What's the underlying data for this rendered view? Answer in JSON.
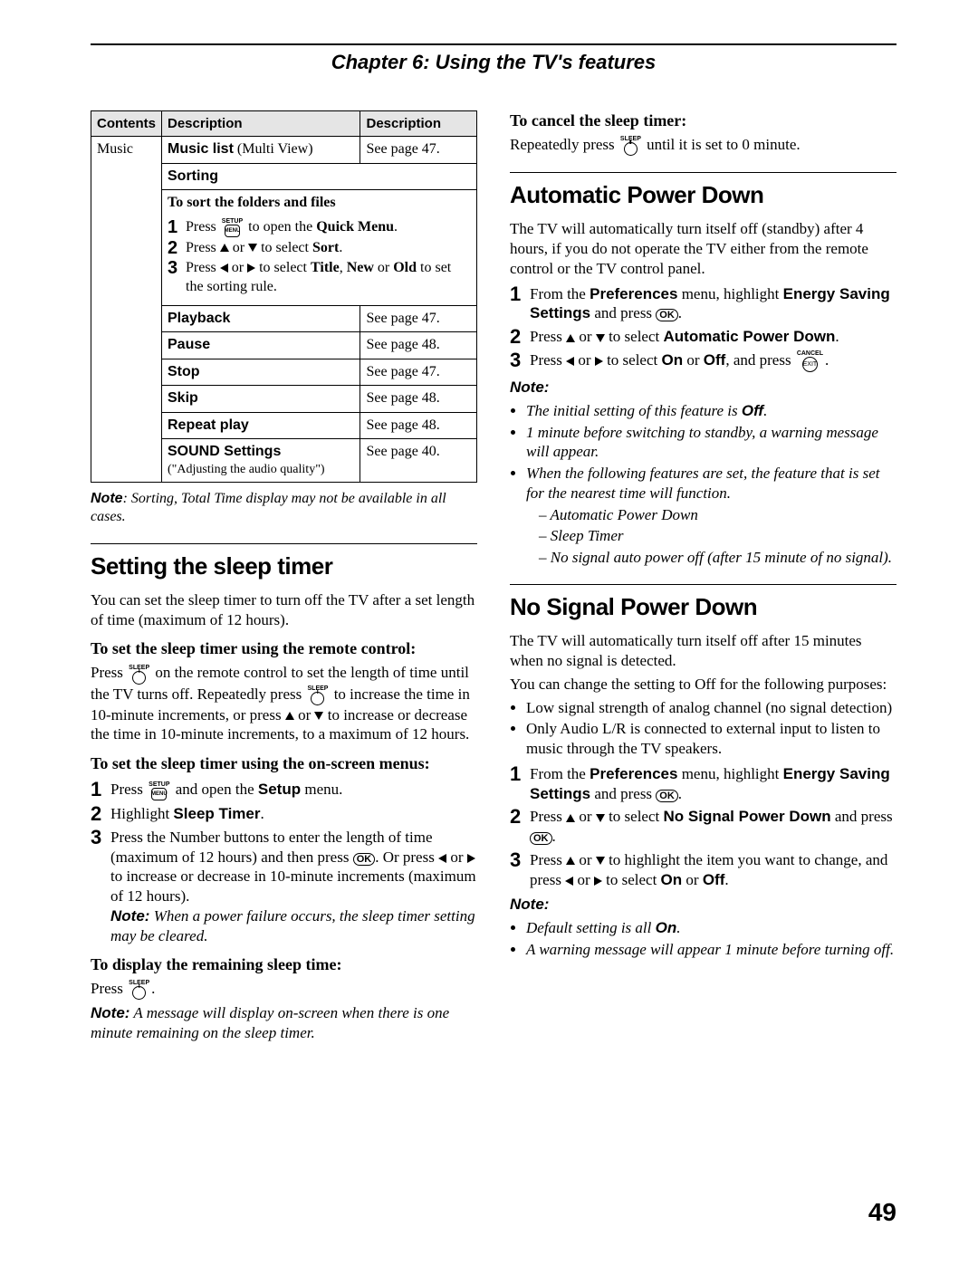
{
  "chapter_title": "Chapter 6: Using the TV's features",
  "page_number": "49",
  "table": {
    "headers": [
      "Contents",
      "Description",
      "Description"
    ],
    "music_label": "Music",
    "row_musiclist": {
      "label": "Music list",
      "paren": " (Multi View)",
      "ref": "See page 47."
    },
    "sorting_label": "Sorting",
    "sort_heading": "To sort the folders and files",
    "sort_steps": {
      "s1_a": "Press ",
      "s1_b": " to open the ",
      "s1_c": "Quick Menu",
      "s1_d": ".",
      "s2_a": "Press ",
      "s2_b": " or ",
      "s2_c": " to select ",
      "s2_d": "Sort",
      "s2_e": ".",
      "s3_a": "Press ",
      "s3_b": " or ",
      "s3_c": " to select ",
      "s3_d": "Title",
      "s3_e": ", ",
      "s3_f": "New",
      "s3_g": " or ",
      "s3_h": "Old",
      "s3_i": " to set the sorting rule."
    },
    "row_playback": {
      "label": "Playback",
      "ref": "See page 47."
    },
    "row_pause": {
      "label": "Pause",
      "ref": "See page 48."
    },
    "row_stop": {
      "label": "Stop",
      "ref": "See page 47."
    },
    "row_skip": {
      "label": "Skip",
      "ref": "See page 48."
    },
    "row_repeat": {
      "label": "Repeat play",
      "ref": "See page 48."
    },
    "row_sound": {
      "label": "SOUND Settings",
      "sub": "(\"Adjusting the audio quality\")",
      "ref": "See page 40."
    }
  },
  "table_note_label": "Note",
  "table_note_text": ": Sorting, Total Time display may not be available in all cases.",
  "sec_sleep": {
    "title": "Setting the sleep timer",
    "intro": "You can set the sleep timer to turn off the TV after a set length of time (maximum of 12 hours).",
    "h_remote": "To set the sleep timer using the remote control:",
    "remote_a": "Press ",
    "remote_b": " on the remote control to set the length of time until the TV turns off. Repeatedly press ",
    "remote_c": " to increase the time in 10-minute increments, or press ",
    "remote_d": " or ",
    "remote_e": " to increase or decrease the time in 10-minute increments, to a maximum of 12 hours.",
    "h_menus": "To set the sleep timer using the on-screen menus:",
    "m1_a": "Press ",
    "m1_b": " and open the ",
    "m1_c": "Setup",
    "m1_d": " menu.",
    "m2_a": "Highlight ",
    "m2_b": "Sleep Timer",
    "m2_c": ".",
    "m3_a": "Press the Number buttons to enter the length of time (maximum of 12 hours) and then press ",
    "m3_b": ". Or press ",
    "m3_c": " or ",
    "m3_d": " to increase or decrease in 10-minute increments (maximum of 12 hours).",
    "m3_note_label": "Note:",
    "m3_note": " When a power failure occurs, the sleep timer setting may be cleared.",
    "h_display": "To display the remaining sleep time:",
    "display_a": "Press ",
    "display_b": ".",
    "display_note_label": "Note:",
    "display_note": " A message will display on-screen when there is one minute remaining on the sleep timer."
  },
  "sec_cancel": {
    "heading": "To cancel the sleep timer:",
    "text_a": "Repeatedly press ",
    "text_b": " until it is set to 0 minute."
  },
  "sec_apd": {
    "title": "Automatic Power Down",
    "intro": "The TV will automatically turn itself off (standby) after 4 hours, if you do not operate the TV either from the remote control or the TV control panel.",
    "s1_a": "From the ",
    "s1_b": "Preferences",
    "s1_c": " menu, highlight ",
    "s1_d": "Energy Saving Settings",
    "s1_e": " and press ",
    "s1_f": ".",
    "s2_a": "Press ",
    "s2_b": " or ",
    "s2_c": " to select ",
    "s2_d": "Automatic Power Down",
    "s2_e": ".",
    "s3_a": "Press ",
    "s3_b": " or ",
    "s3_c": " to select ",
    "s3_d": "On",
    "s3_e": " or ",
    "s3_f": "Off",
    "s3_g": ", and press ",
    "s3_h": ".",
    "note_label": "Note:",
    "b1_a": "The initial setting of this feature is ",
    "b1_b": "Off",
    "b1_c": ".",
    "b2": "1 minute before switching to standby, a warning message will appear.",
    "b3": "When the following features are set, the feature that is set for the nearest time will function.",
    "sub1": "Automatic Power Down",
    "sub2": "Sleep Timer",
    "sub3": "No signal auto power off (after 15 minute of no signal)."
  },
  "sec_nspd": {
    "title": "No Signal Power Down",
    "intro1": "The TV will automatically turn itself off after 15 minutes when no signal is detected.",
    "intro2": "You can change the setting to Off for the following purposes:",
    "b1": "Low signal strength of analog channel (no signal detection)",
    "b2": "Only Audio L/R is connected to external input to listen to music through the TV speakers.",
    "s1_a": "From the ",
    "s1_b": "Preferences",
    "s1_c": " menu, highlight ",
    "s1_d": "Energy Saving Settings",
    "s1_e": " and press ",
    "s1_f": ".",
    "s2_a": "Press ",
    "s2_b": " or ",
    "s2_c": " to select ",
    "s2_d": "No Signal Power Down",
    "s2_e": " and press ",
    "s2_f": ".",
    "s3_a": "Press ",
    "s3_b": " or ",
    "s3_c": " to highlight the item you want to change, and press ",
    "s3_d": " or ",
    "s3_e": " to select ",
    "s3_f": "On",
    "s3_g": " or ",
    "s3_h": "Off",
    "s3_i": ".",
    "note_label": "Note:",
    "n1_a": "Default setting is all ",
    "n1_b": "On",
    "n1_c": ".",
    "n2": "A warning message will appear 1 minute before turning off."
  },
  "icon_labels": {
    "sleep": "SLEEP",
    "setup": "SETUP",
    "menu": "MENU",
    "ok": "OK",
    "cancel": "CANCEL",
    "exit": "EXIT"
  }
}
